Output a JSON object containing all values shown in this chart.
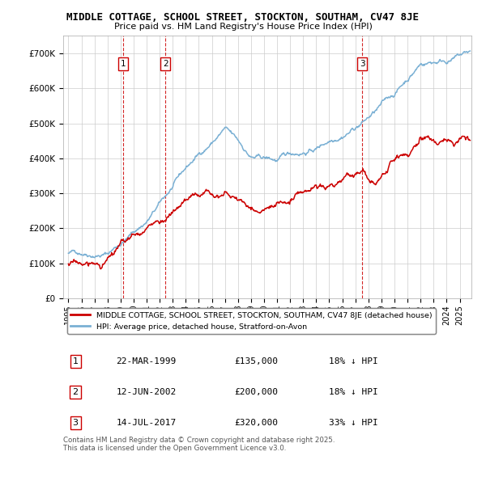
{
  "title": "MIDDLE COTTAGE, SCHOOL STREET, STOCKTON, SOUTHAM, CV47 8JE",
  "subtitle": "Price paid vs. HM Land Registry's House Price Index (HPI)",
  "background_color": "#ffffff",
  "plot_bg_color": "#ffffff",
  "grid_color": "#cccccc",
  "red_color": "#cc0000",
  "blue_color": "#7ab0d4",
  "ylim": [
    0,
    750000
  ],
  "yticks": [
    0,
    100000,
    200000,
    300000,
    400000,
    500000,
    600000,
    700000
  ],
  "ytick_labels": [
    "£0",
    "£100K",
    "£200K",
    "£300K",
    "£400K",
    "£500K",
    "£600K",
    "£700K"
  ],
  "sale_labels": [
    "1",
    "2",
    "3"
  ],
  "sale_year_floats": [
    1999.22,
    2002.45,
    2017.54
  ],
  "sale_notes": [
    "22-MAR-1999",
    "12-JUN-2002",
    "14-JUL-2017"
  ],
  "sale_price_strs": [
    "£135,000",
    "£200,000",
    "£320,000"
  ],
  "sale_hpi_notes": [
    "18% ↓ HPI",
    "18% ↓ HPI",
    "33% ↓ HPI"
  ],
  "legend_red": "MIDDLE COTTAGE, SCHOOL STREET, STOCKTON, SOUTHAM, CV47 8JE (detached house)",
  "legend_blue": "HPI: Average price, detached house, Stratford-on-Avon",
  "footer": "Contains HM Land Registry data © Crown copyright and database right 2025.\nThis data is licensed under the Open Government Licence v3.0."
}
